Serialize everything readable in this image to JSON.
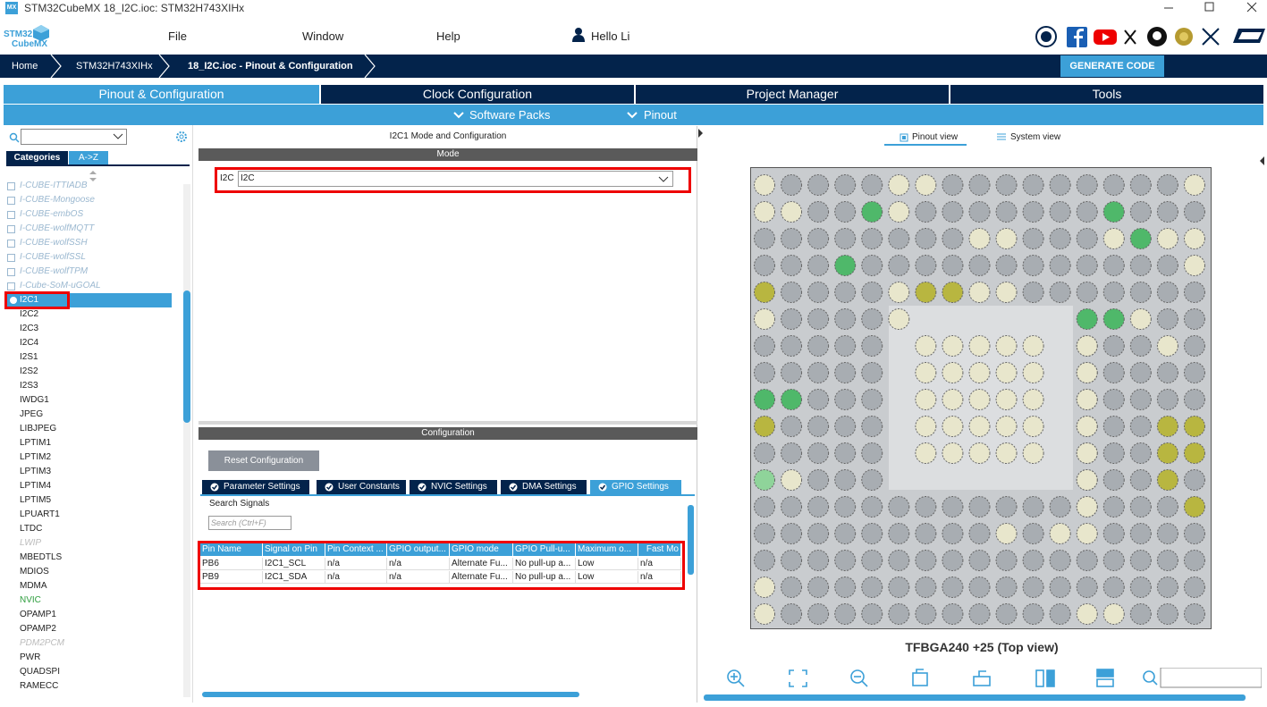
{
  "window": {
    "app_icon": "MX",
    "title": "STM32CubeMX 18_I2C.ioc: STM32H743XIHx"
  },
  "menu": {
    "logo_top": "STM32",
    "logo_bottom": "CubeMX",
    "items": [
      "File",
      "Window",
      "Help"
    ],
    "user": "Hello Li"
  },
  "breadcrumb": [
    "Home",
    "STM32H743XIHx",
    "18_I2C.ioc - Pinout & Configuration"
  ],
  "generate_button": "GENERATE CODE",
  "tabs": [
    "Pinout & Configuration",
    "Clock Configuration",
    "Project Manager",
    "Tools"
  ],
  "subtabs": [
    "Software Packs",
    "Pinout"
  ],
  "sidebar": {
    "tabs": [
      "Categories",
      "A->Z"
    ],
    "items": [
      {
        "label": "I-CUBE-ITTIADB",
        "style": "pack"
      },
      {
        "label": "I-CUBE-Mongoose",
        "style": "pack"
      },
      {
        "label": "I-CUBE-embOS",
        "style": "pack"
      },
      {
        "label": "I-CUBE-wolfMQTT",
        "style": "pack"
      },
      {
        "label": "I-CUBE-wolfSSH",
        "style": "pack"
      },
      {
        "label": "I-CUBE-wolfSSL",
        "style": "pack"
      },
      {
        "label": "I-CUBE-wolfTPM",
        "style": "pack"
      },
      {
        "label": "I-Cube-SoM-uGOAL",
        "style": "pack"
      },
      {
        "label": "I2C1",
        "style": "selected"
      },
      {
        "label": "I2C2",
        "style": "normal"
      },
      {
        "label": "I2C3",
        "style": "normal"
      },
      {
        "label": "I2C4",
        "style": "normal"
      },
      {
        "label": "I2S1",
        "style": "normal"
      },
      {
        "label": "I2S2",
        "style": "normal"
      },
      {
        "label": "I2S3",
        "style": "normal"
      },
      {
        "label": "IWDG1",
        "style": "normal"
      },
      {
        "label": "JPEG",
        "style": "normal"
      },
      {
        "label": "LIBJPEG",
        "style": "normal"
      },
      {
        "label": "LPTIM1",
        "style": "normal"
      },
      {
        "label": "LPTIM2",
        "style": "normal"
      },
      {
        "label": "LPTIM3",
        "style": "normal"
      },
      {
        "label": "LPTIM4",
        "style": "normal"
      },
      {
        "label": "LPTIM5",
        "style": "normal"
      },
      {
        "label": "LPUART1",
        "style": "normal"
      },
      {
        "label": "LTDC",
        "style": "normal"
      },
      {
        "label": "LWIP",
        "style": "disabled"
      },
      {
        "label": "MBEDTLS",
        "style": "normal"
      },
      {
        "label": "MDIOS",
        "style": "normal"
      },
      {
        "label": "MDMA",
        "style": "normal"
      },
      {
        "label": "NVIC",
        "style": "configured"
      },
      {
        "label": "OPAMP1",
        "style": "normal"
      },
      {
        "label": "OPAMP2",
        "style": "normal"
      },
      {
        "label": "PDM2PCM",
        "style": "disabled"
      },
      {
        "label": "PWR",
        "style": "normal"
      },
      {
        "label": "QUADSPI",
        "style": "normal"
      },
      {
        "label": "RAMECC",
        "style": "normal"
      }
    ]
  },
  "mode_panel": {
    "title": "I2C1 Mode and Configuration",
    "header": "Mode",
    "field_label": "I2C",
    "field_value": "I2C"
  },
  "config_panel": {
    "header": "Configuration",
    "reset_button": "Reset Configuration",
    "tabs": [
      "Parameter Settings",
      "User Constants",
      "NVIC Settings",
      "DMA Settings",
      "GPIO Settings"
    ],
    "active_tab": 4,
    "search_label": "Search Signals",
    "search_placeholder": "Search (Ctrl+F)",
    "table": {
      "columns": [
        "Pin Name",
        "Signal on Pin",
        "Pin Context ...",
        "GPIO output...",
        "GPIO mode",
        "GPIO Pull-u...",
        "Maximum o...",
        "Fast Mo"
      ],
      "rows": [
        [
          "PB6",
          "I2C1_SCL",
          "n/a",
          "n/a",
          "Alternate Fu...",
          "No pull-up a...",
          "Low",
          "n/a"
        ],
        [
          "PB9",
          "I2C1_SDA",
          "n/a",
          "n/a",
          "Alternate Fu...",
          "No pull-up a...",
          "Low",
          "n/a"
        ]
      ]
    }
  },
  "pinout_panel": {
    "views": [
      "Pinout view",
      "System view"
    ],
    "package": "TFBGA240 +25 (Top view)"
  }
}
